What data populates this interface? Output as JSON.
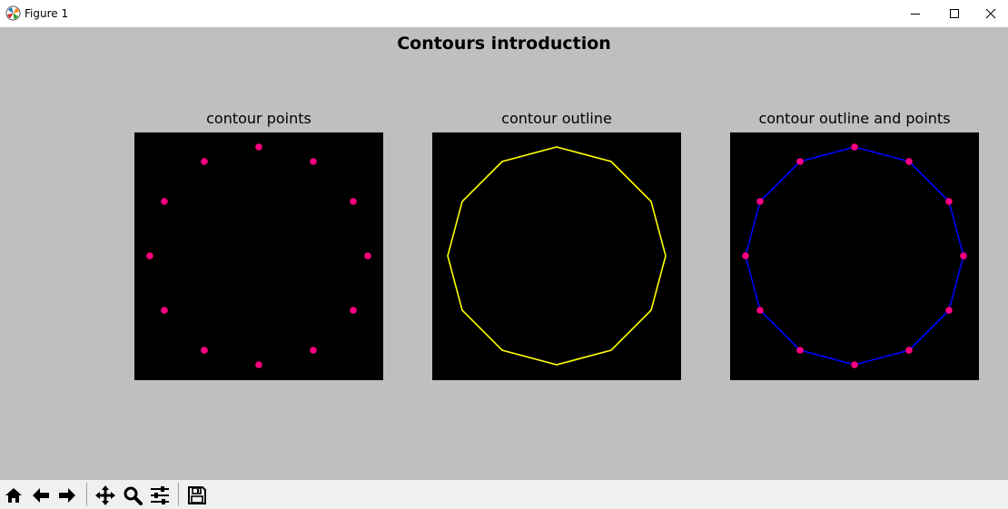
{
  "window": {
    "title": "Figure 1",
    "icons": {
      "app": "matplotlib-icon",
      "minimize": "minimize-icon",
      "maximize": "maximize-icon",
      "close": "close-icon"
    }
  },
  "figure": {
    "suptitle": "Contours introduction",
    "background": "#bfbfbf"
  },
  "chart_data": [
    {
      "type": "scatter",
      "title": "contour points",
      "marker_color": "#ff0080",
      "background": "#000000",
      "xlim": [
        0,
        274
      ],
      "ylim": [
        0,
        273
      ],
      "x": [
        137,
        197,
        241,
        257,
        241,
        197,
        137,
        77,
        33,
        17,
        33,
        77
      ],
      "y": [
        16,
        32,
        76,
        136,
        196,
        240,
        256,
        240,
        196,
        136,
        76,
        32
      ]
    },
    {
      "type": "line",
      "title": "contour outline",
      "line_color": "#ffff00",
      "background": "#000000",
      "xlim": [
        0,
        274
      ],
      "ylim": [
        0,
        273
      ],
      "x": [
        137,
        197,
        241,
        257,
        241,
        197,
        137,
        77,
        33,
        17,
        33,
        77
      ],
      "y": [
        16,
        32,
        76,
        136,
        196,
        240,
        256,
        240,
        196,
        136,
        76,
        32
      ]
    },
    {
      "type": "line",
      "title": "contour outline and points",
      "line_color": "#0000ff",
      "marker_color": "#ff0080",
      "background": "#000000",
      "xlim": [
        0,
        274
      ],
      "ylim": [
        0,
        273
      ],
      "x": [
        137,
        197,
        241,
        257,
        241,
        197,
        137,
        77,
        33,
        17,
        33,
        77
      ],
      "y": [
        16,
        32,
        76,
        136,
        196,
        240,
        256,
        240,
        196,
        136,
        76,
        32
      ]
    }
  ],
  "toolbar": {
    "buttons": [
      {
        "name": "home-button",
        "icon": "home-icon"
      },
      {
        "name": "back-button",
        "icon": "arrow-left-icon"
      },
      {
        "name": "forward-button",
        "icon": "arrow-right-icon"
      },
      {
        "name": "pan-button",
        "icon": "move-icon"
      },
      {
        "name": "zoom-button",
        "icon": "magnifier-icon"
      },
      {
        "name": "configure-subplots-button",
        "icon": "sliders-icon"
      },
      {
        "name": "save-button",
        "icon": "floppy-icon"
      }
    ]
  }
}
